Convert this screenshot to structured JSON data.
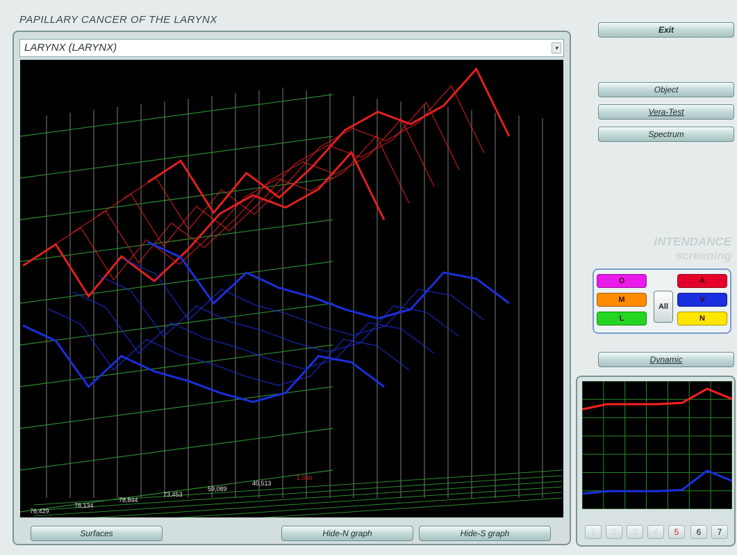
{
  "title": "PAPILLARY  CANCER  OF THE LARYNX",
  "select": {
    "value": "LARYNX  (LARYNX)",
    "arrow_icon": "dropdown-arrow-icon"
  },
  "side_buttons": {
    "exit": "Exit",
    "object": "Object",
    "vera_test": "Vera-Test",
    "spectrum": "Spectrum",
    "dynamic": "Dynamic"
  },
  "brand": {
    "line1": "INTENDANCE",
    "line2": "screening"
  },
  "legend": {
    "O": {
      "label": "O",
      "color": "#e81be8"
    },
    "M": {
      "label": "M",
      "color": "#ff8c00"
    },
    "L": {
      "label": "L",
      "color": "#22d622"
    },
    "A": {
      "label": "A",
      "color": "#e5002b"
    },
    "V": {
      "label": "V",
      "color": "#1a2fe0"
    },
    "N": {
      "label": "N",
      "color": "#ffe600"
    },
    "all": "All"
  },
  "bottom_buttons": {
    "surfaces": "Surfaces",
    "hide_n": "Hide-N graph",
    "hide_s": "Hide-S graph"
  },
  "pager": [
    "1",
    "2",
    "3",
    "4",
    "5",
    "6",
    "7"
  ],
  "chart_data": {
    "type": "line",
    "title": "",
    "axis_values": [
      "76,429",
      "78,134",
      "78,844",
      "73,453",
      "59,089",
      "40,513",
      "1,036"
    ],
    "series": [
      {
        "color": "#e02020",
        "values": [
          0.55,
          0.62,
          0.45,
          0.58,
          0.5,
          0.6,
          0.72,
          0.78,
          0.74,
          0.8,
          0.92,
          0.7
        ]
      },
      {
        "color": "#1a2fd8",
        "values": [
          0.4,
          0.35,
          0.2,
          0.3,
          0.25,
          0.22,
          0.18,
          0.15,
          0.18,
          0.3,
          0.28,
          0.2
        ]
      }
    ],
    "mini_chart": {
      "series": [
        {
          "color": "#ff2020",
          "values": [
            0.78,
            0.82,
            0.82,
            0.82,
            0.83,
            0.94,
            0.86
          ]
        },
        {
          "color": "#1a2fe0",
          "values": [
            0.12,
            0.14,
            0.14,
            0.14,
            0.15,
            0.3,
            0.22
          ]
        }
      ]
    }
  }
}
